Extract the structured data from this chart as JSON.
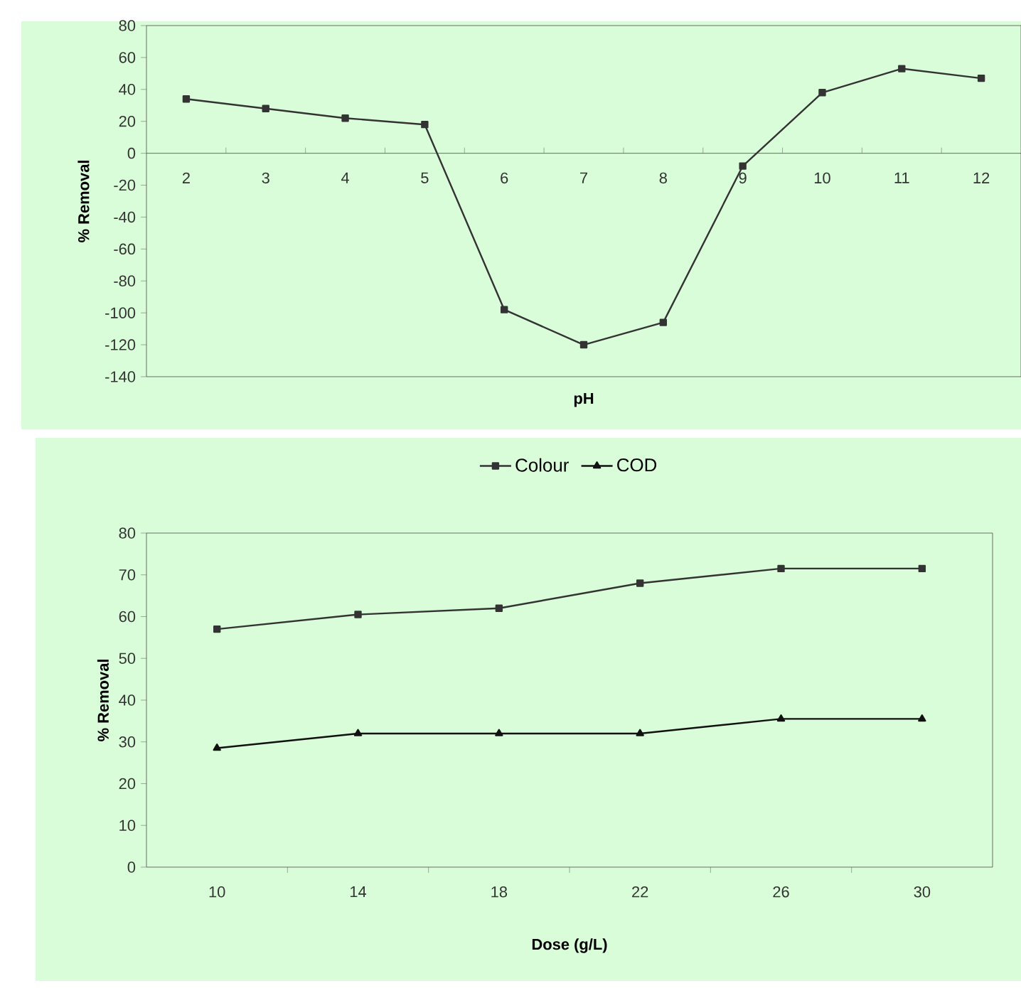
{
  "chart_data": [
    {
      "type": "line",
      "categories": [
        "2",
        "3",
        "4",
        "5",
        "6",
        "7",
        "8",
        "9",
        "10",
        "11",
        "12"
      ],
      "xlabel": "pH",
      "ylabel": "% Removal",
      "series": [
        {
          "color": "#333333",
          "marker": "square",
          "values": [
            34,
            28,
            22,
            18,
            -98,
            -120,
            -106,
            -8,
            38,
            53,
            47
          ]
        }
      ],
      "ylim": [
        -140,
        80
      ],
      "yticks": [
        -140,
        -120,
        -100,
        -80,
        -60,
        -40,
        -20,
        0,
        20,
        40,
        60,
        80
      ],
      "grid": false,
      "legend": false
    },
    {
      "type": "line",
      "categories": [
        "10",
        "14",
        "18",
        "22",
        "26",
        "30"
      ],
      "xlabel": "Dose (g/L)",
      "ylabel": "% Removal",
      "series": [
        {
          "name": "Colour",
          "color": "#333333",
          "marker": "square",
          "values": [
            57,
            60.5,
            62,
            68,
            71.5,
            71.5
          ]
        },
        {
          "name": "COD",
          "color": "#111111",
          "marker": "triangle",
          "values": [
            28.5,
            32,
            32,
            32,
            35.5,
            35.5
          ]
        }
      ],
      "ylim": [
        0,
        80
      ],
      "yticks": [
        0,
        10,
        20,
        30,
        40,
        50,
        60,
        70,
        80
      ],
      "grid": false,
      "legend": "top"
    }
  ]
}
